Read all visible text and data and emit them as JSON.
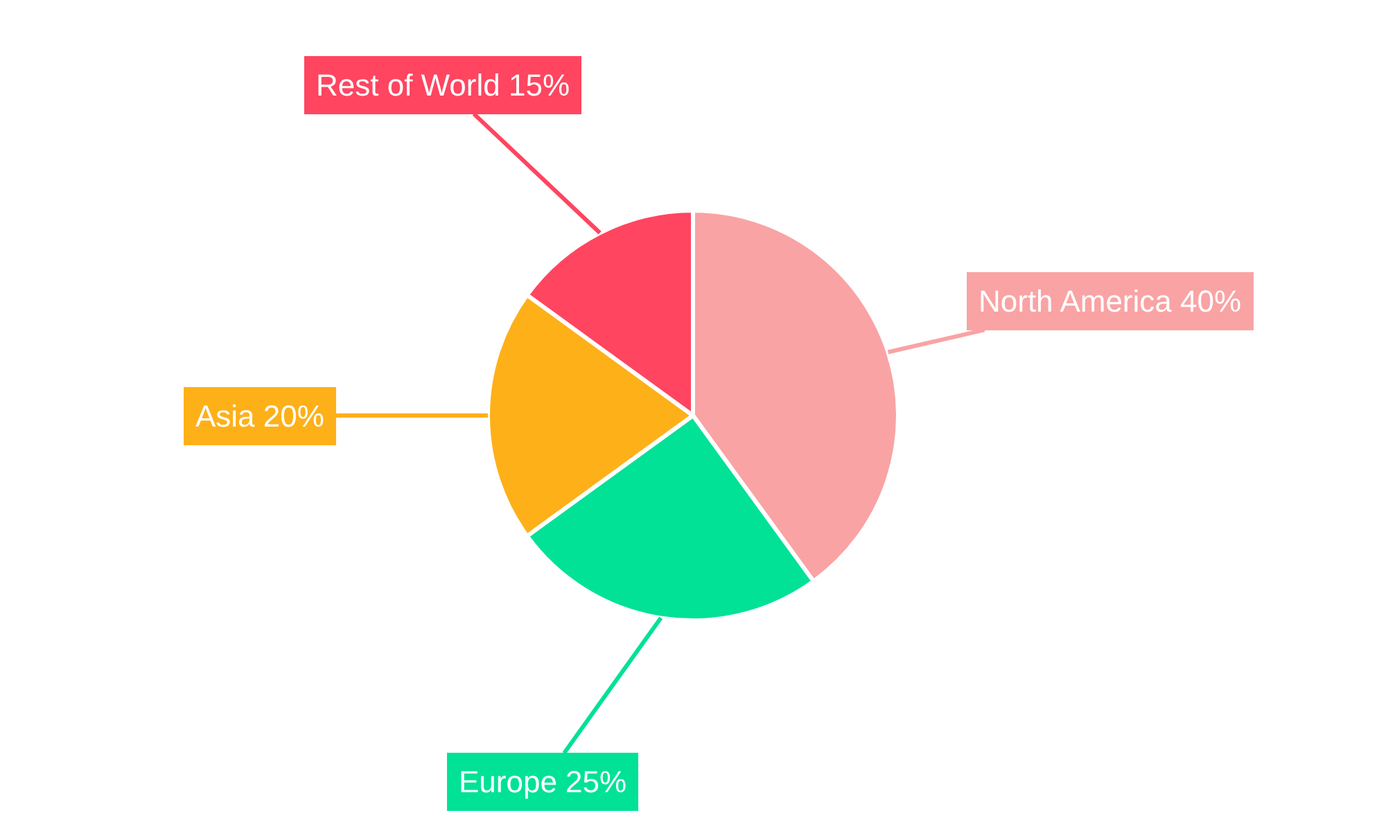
{
  "chart_data": {
    "type": "pie",
    "categories": [
      "North America",
      "Europe",
      "Asia",
      "Rest of World"
    ],
    "values": [
      40,
      25,
      20,
      15
    ],
    "colors": [
      "#f9a3a4",
      "#01e296",
      "#feb019",
      "#ff4560"
    ],
    "value_labels": [
      "40%",
      "25%",
      "20%",
      "15%"
    ],
    "legend": false
  }
}
